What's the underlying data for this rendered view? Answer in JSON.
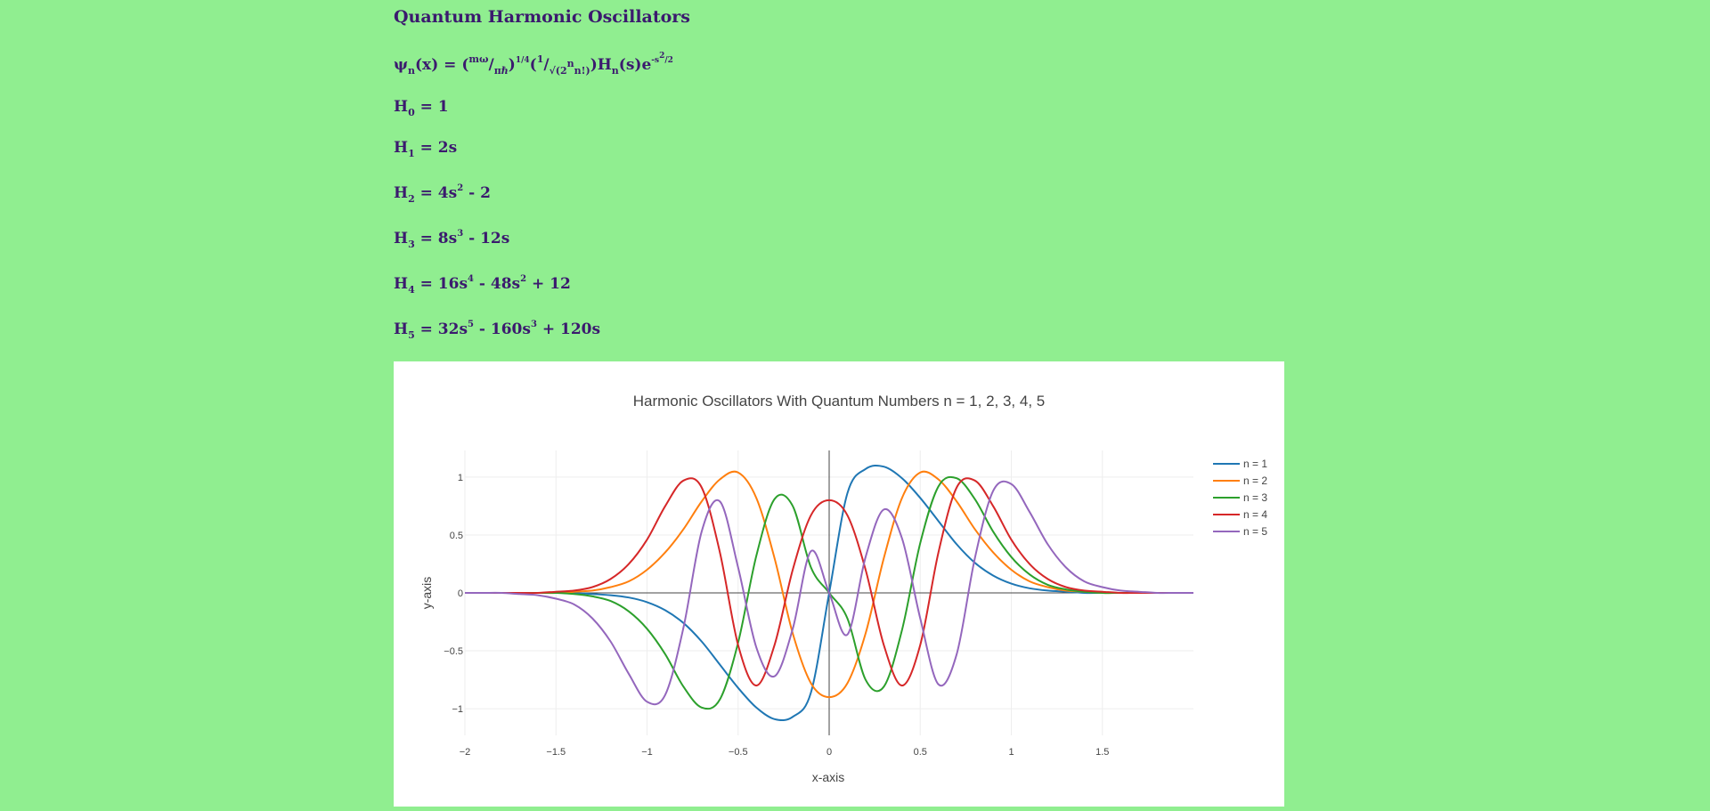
{
  "page": {
    "title": "Quantum Harmonic Oscillators"
  },
  "formulas": {
    "psi": {
      "psi": "ψ",
      "psi_sub": "n",
      "lhs": "(x) = (",
      "mw": "mω",
      "slash1": "/",
      "pih": "πℏ",
      "close1": ")",
      "exp1": "1/4",
      "open2": "(",
      "one": "1",
      "slash2": "/",
      "sqrt": "√(2",
      "n_sup": "n",
      "nfact": "n!)",
      "close2": ")",
      "H": "H",
      "H_sub": "n",
      "s": "(s)e",
      "exp2a": "-s",
      "exp2b": "2",
      "exp2c": "/2"
    },
    "h0": {
      "H": "H",
      "sub": "0",
      "rhs": " = 1"
    },
    "h1": {
      "H": "H",
      "sub": "1",
      "rhs": " = 2s"
    },
    "h2": {
      "H": "H",
      "sub": "2",
      "a": " = 4s",
      "a_exp": "2",
      "b": " - 2"
    },
    "h3": {
      "H": "H",
      "sub": "3",
      "a": " = 8s",
      "a_exp": "3",
      "b": " - 12s"
    },
    "h4": {
      "H": "H",
      "sub": "4",
      "a": " = 16s",
      "a_exp": "4",
      "b": " - 48s",
      "b_exp": "2",
      "c": " + 12"
    },
    "h5": {
      "H": "H",
      "sub": "5",
      "a": " = 32s",
      "a_exp": "5",
      "b": " - 160s",
      "b_exp": "3",
      "c": " + 120s"
    }
  },
  "chart_data": {
    "type": "line",
    "title": "Harmonic Oscillators With Quantum Numbers n = 1, 2, 3, 4, 5",
    "xlabel": "x-axis",
    "ylabel": "y-axis",
    "xlim": [
      -2,
      2
    ],
    "ylim": [
      -1.23,
      1.23
    ],
    "xticks": [
      -2,
      -1.5,
      -1,
      -0.5,
      0,
      0.5,
      1,
      1.5
    ],
    "xtick_labels": [
      "−2",
      "−1.5",
      "−1",
      "−0.5",
      "0",
      "0.5",
      "1",
      "1.5"
    ],
    "yticks": [
      -1,
      -0.5,
      0,
      0.5,
      1
    ],
    "ytick_labels": [
      "−1",
      "−0.5",
      "0",
      "0.5",
      "1"
    ],
    "grid": true,
    "legend_position": "top-right",
    "x_start": -2,
    "x_step": 0.1,
    "series": [
      {
        "name": "n = 1",
        "color": "#1f77b4",
        "values": [
          0,
          0,
          0,
          0,
          0,
          0,
          0,
          -0.01,
          -0.02,
          -0.04,
          -0.08,
          -0.15,
          -0.26,
          -0.42,
          -0.62,
          -0.82,
          -0.99,
          -1.09,
          -1.07,
          -0.86,
          0,
          0.86,
          1.07,
          1.09,
          0.99,
          0.82,
          0.62,
          0.42,
          0.26,
          0.15,
          0.08,
          0.04,
          0.02,
          0.01,
          0,
          0,
          0,
          0,
          0,
          0,
          0
        ]
      },
      {
        "name": "n = 2",
        "color": "#ff7f0e",
        "values": [
          0,
          0,
          0,
          0,
          0,
          0,
          0.01,
          0.02,
          0.05,
          0.1,
          0.2,
          0.35,
          0.55,
          0.79,
          0.98,
          1.04,
          0.82,
          0.3,
          -0.35,
          -0.78,
          -0.9,
          -0.78,
          -0.35,
          0.3,
          0.82,
          1.04,
          0.98,
          0.79,
          0.55,
          0.35,
          0.2,
          0.1,
          0.05,
          0.02,
          0.01,
          0,
          0,
          0,
          0,
          0,
          0
        ]
      },
      {
        "name": "n = 3",
        "color": "#2ca02c",
        "values": [
          0,
          0,
          0,
          0,
          0,
          0,
          -0.01,
          -0.03,
          -0.07,
          -0.16,
          -0.31,
          -0.53,
          -0.81,
          -0.99,
          -0.92,
          -0.43,
          0.32,
          0.81,
          0.75,
          0.22,
          0,
          -0.22,
          -0.75,
          -0.81,
          -0.32,
          0.43,
          0.92,
          0.99,
          0.81,
          0.53,
          0.31,
          0.16,
          0.07,
          0.03,
          0.01,
          0,
          0,
          0,
          0,
          0,
          0
        ]
      },
      {
        "name": "n = 4",
        "color": "#d62728",
        "values": [
          0,
          0,
          0,
          0,
          0,
          0.01,
          0.02,
          0.05,
          0.12,
          0.25,
          0.46,
          0.75,
          0.97,
          0.91,
          0.35,
          -0.45,
          -0.8,
          -0.45,
          0.2,
          0.67,
          0.8,
          0.67,
          0.2,
          -0.45,
          -0.8,
          -0.45,
          0.35,
          0.91,
          0.97,
          0.75,
          0.46,
          0.25,
          0.12,
          0.05,
          0.02,
          0.01,
          0,
          0,
          0,
          0,
          0
        ]
      },
      {
        "name": "n = 5",
        "color": "#9467bd",
        "values": [
          0,
          0,
          0,
          -0.01,
          -0.02,
          -0.05,
          -0.1,
          -0.22,
          -0.42,
          -0.7,
          -0.94,
          -0.88,
          -0.3,
          0.53,
          0.79,
          0.22,
          -0.47,
          -0.72,
          -0.31,
          0.36,
          0,
          -0.36,
          0.31,
          0.72,
          0.47,
          -0.22,
          -0.79,
          -0.53,
          0.3,
          0.88,
          0.94,
          0.7,
          0.42,
          0.22,
          0.1,
          0.05,
          0.02,
          0.01,
          0,
          0,
          0
        ]
      }
    ]
  }
}
